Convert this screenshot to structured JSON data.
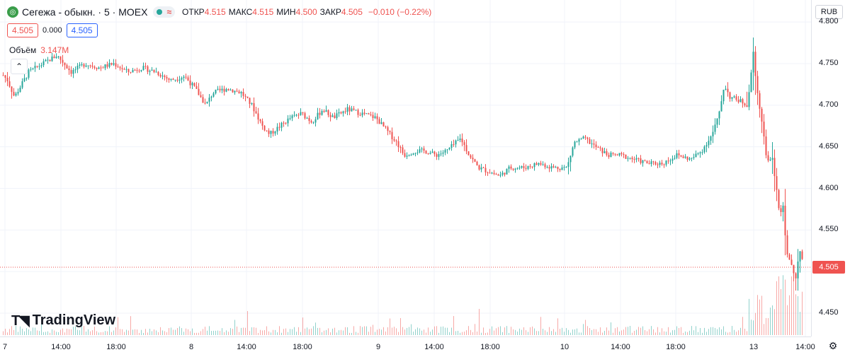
{
  "header": {
    "logo_icon": "segezha-logo-icon",
    "symbol": "Сегежа - обыкн. · 5 · MOEX",
    "wave_icon": "≈",
    "open_label": "ОТКР",
    "open_value": "4.515",
    "high_label": "МАКС",
    "high_value": "4.515",
    "low_label": "МИН",
    "low_value": "4.500",
    "close_label": "ЗАКР",
    "close_value": "4.505",
    "change": "−0.010 (−0.22%)"
  },
  "trade": {
    "sell": "4.505",
    "spread": "0.000",
    "buy": "4.505"
  },
  "volume": {
    "label": "Объём",
    "value": "3.147M"
  },
  "currency": "RUB",
  "last_price": "4.505",
  "brand": "TradingView",
  "colors": {
    "up": "#26a69a",
    "down": "#ef5350",
    "grid": "#f0f3fa"
  },
  "chart_data": {
    "type": "candlestick",
    "interval": "5",
    "exchange": "MOEX",
    "y_ticks": [
      "4.450",
      "4.500",
      "4.550",
      "4.600",
      "4.650",
      "4.700",
      "4.750",
      "4.800"
    ],
    "ylim": [
      4.43,
      4.8
    ],
    "x_ticks": [
      "7",
      "14:00",
      "18:00",
      "8",
      "14:00",
      "18:00",
      "9",
      "14:00",
      "18:00",
      "10",
      "14:00",
      "18:00",
      "13",
      "14:00"
    ],
    "last_price": 4.505,
    "price_path": [
      [
        0,
        4.74
      ],
      [
        10,
        4.73
      ],
      [
        20,
        4.71
      ],
      [
        40,
        4.74
      ],
      [
        60,
        4.75
      ],
      [
        80,
        4.76
      ],
      [
        100,
        4.74
      ],
      [
        120,
        4.75
      ],
      [
        140,
        4.745
      ],
      [
        160,
        4.75
      ],
      [
        180,
        4.74
      ],
      [
        200,
        4.745
      ],
      [
        220,
        4.74
      ],
      [
        240,
        4.73
      ],
      [
        260,
        4.735
      ],
      [
        275,
        4.72
      ],
      [
        290,
        4.7
      ],
      [
        300,
        4.715
      ],
      [
        320,
        4.72
      ],
      [
        340,
        4.715
      ],
      [
        355,
        4.7
      ],
      [
        370,
        4.675
      ],
      [
        380,
        4.665
      ],
      [
        395,
        4.675
      ],
      [
        410,
        4.685
      ],
      [
        425,
        4.69
      ],
      [
        440,
        4.68
      ],
      [
        455,
        4.695
      ],
      [
        470,
        4.685
      ],
      [
        490,
        4.695
      ],
      [
        510,
        4.69
      ],
      [
        530,
        4.685
      ],
      [
        545,
        4.67
      ],
      [
        560,
        4.655
      ],
      [
        570,
        4.64
      ],
      [
        585,
        4.645
      ],
      [
        600,
        4.645
      ],
      [
        615,
        4.64
      ],
      [
        630,
        4.645
      ],
      [
        650,
        4.66
      ],
      [
        662,
        4.64
      ],
      [
        675,
        4.625
      ],
      [
        690,
        4.62
      ],
      [
        705,
        4.615
      ],
      [
        720,
        4.625
      ],
      [
        740,
        4.625
      ],
      [
        760,
        4.63
      ],
      [
        780,
        4.625
      ],
      [
        800,
        4.625
      ],
      [
        810,
        4.655
      ],
      [
        825,
        4.66
      ],
      [
        840,
        4.65
      ],
      [
        858,
        4.64
      ],
      [
        875,
        4.64
      ],
      [
        895,
        4.635
      ],
      [
        915,
        4.63
      ],
      [
        935,
        4.63
      ],
      [
        955,
        4.64
      ],
      [
        975,
        4.635
      ],
      [
        990,
        4.645
      ],
      [
        1005,
        4.665
      ],
      [
        1015,
        4.69
      ],
      [
        1022,
        4.725
      ],
      [
        1030,
        4.71
      ],
      [
        1045,
        4.705
      ],
      [
        1055,
        4.7
      ],
      [
        1063,
        4.765
      ],
      [
        1068,
        4.72
      ],
      [
        1075,
        4.68
      ],
      [
        1083,
        4.63
      ],
      [
        1090,
        4.635
      ],
      [
        1097,
        4.59
      ],
      [
        1100,
        4.57
      ],
      [
        1105,
        4.58
      ],
      [
        1110,
        4.52
      ],
      [
        1117,
        4.51
      ],
      [
        1123,
        4.49
      ],
      [
        1127,
        4.52
      ],
      [
        1130,
        4.53
      ],
      [
        1133,
        4.505
      ]
    ]
  }
}
